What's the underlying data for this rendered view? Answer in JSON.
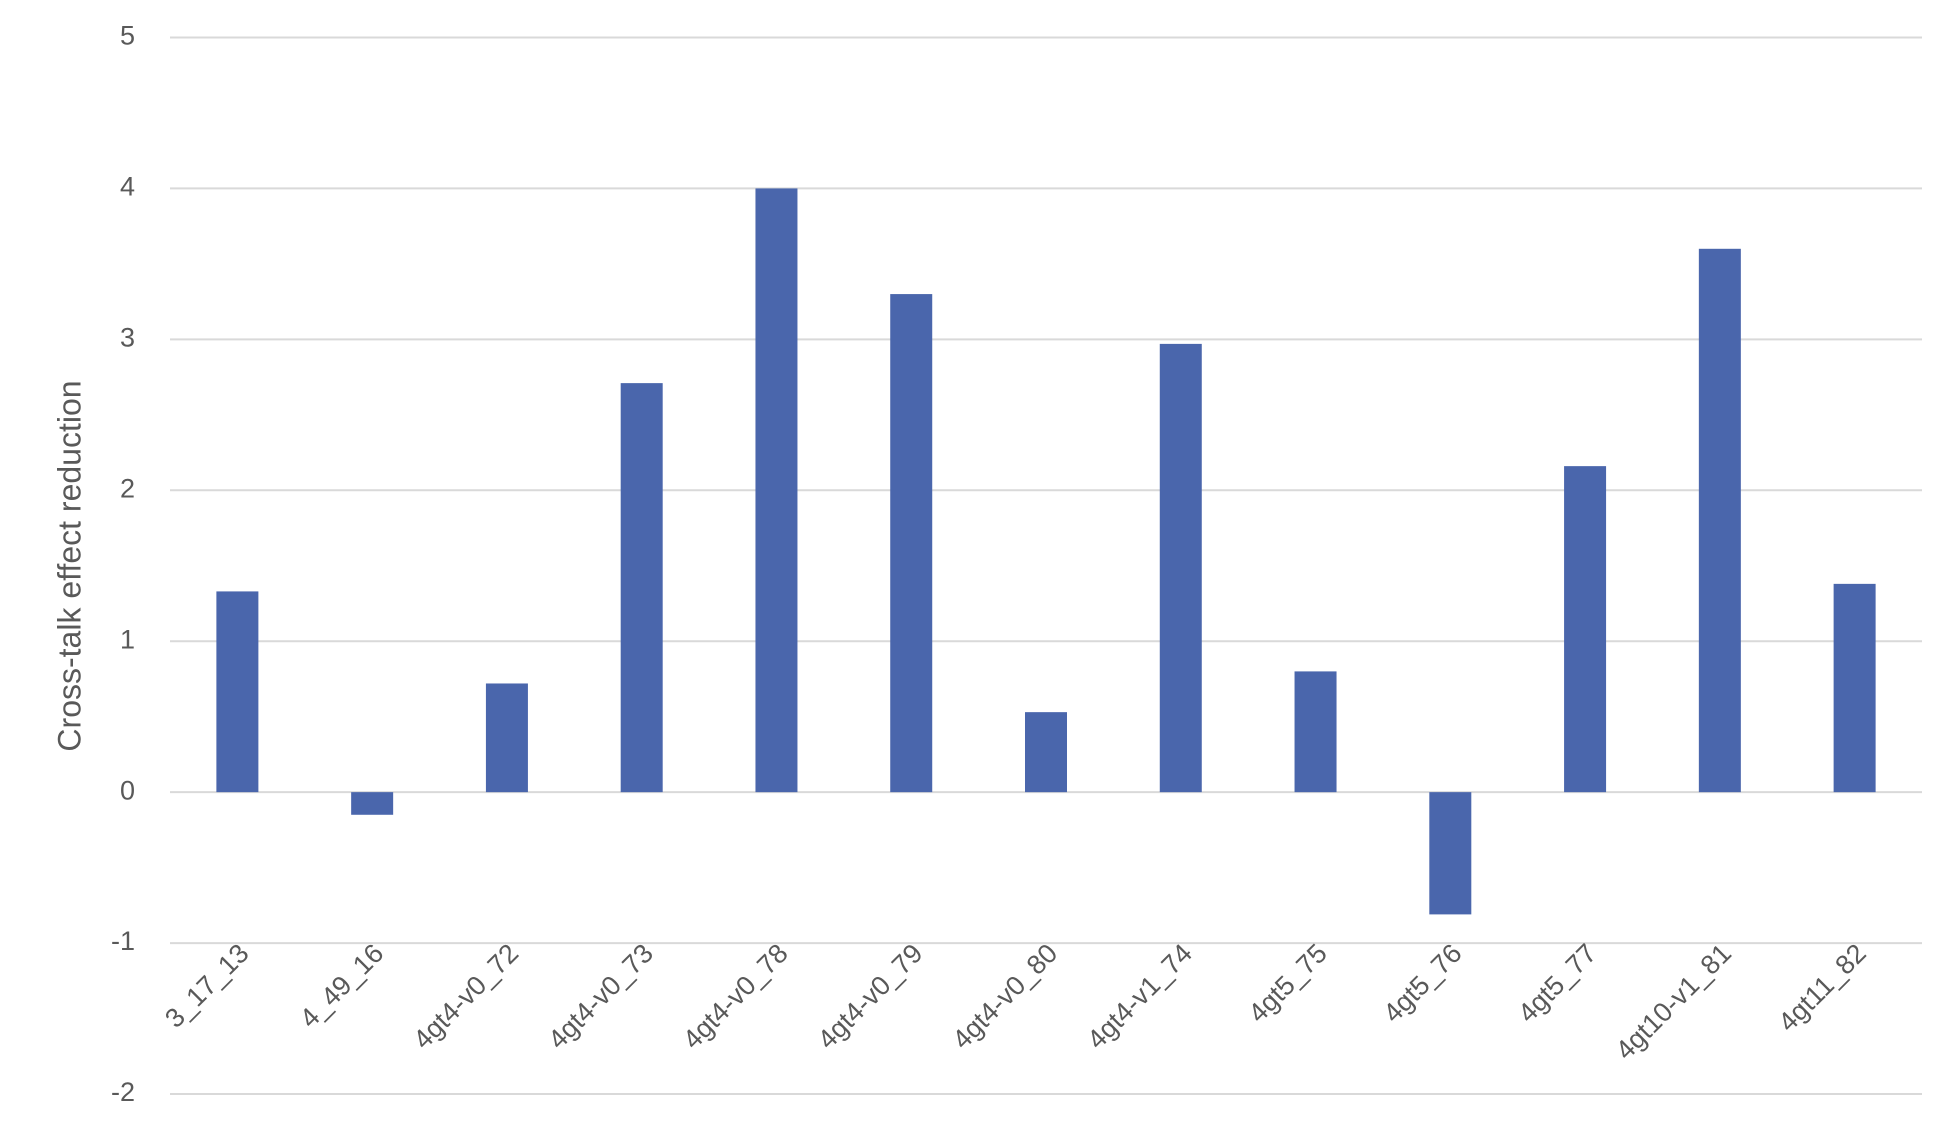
{
  "chart_data": {
    "type": "bar",
    "y_axis_label": "Cross-talk effect reduction",
    "categories": [
      "3_17_13",
      "4_49_16",
      "4gt4-v0_72",
      "4gt4-v0_73",
      "4gt4-v0_78",
      "4gt4-v0_79",
      "4gt4-v0_80",
      "4gt4-v1_74",
      "4gt5_75",
      "4gt5_76",
      "4gt5_77",
      "4gt10-v1_81",
      "4gt11_82"
    ],
    "values": [
      1.33,
      -0.15,
      0.72,
      2.71,
      4.0,
      3.3,
      0.53,
      2.97,
      0.8,
      -0.81,
      2.16,
      3.6,
      1.38
    ],
    "color": "#4a66ac",
    "ylim": [
      -2,
      5
    ],
    "yticks": [
      -2,
      -1,
      0,
      1,
      2,
      3,
      4,
      5
    ],
    "grid": true
  }
}
